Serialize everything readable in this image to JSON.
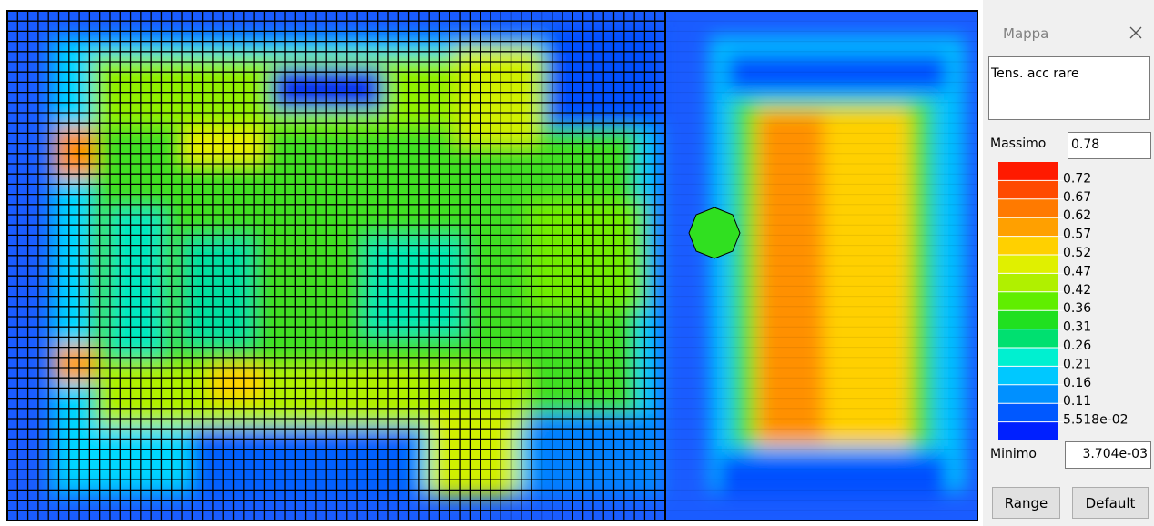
{
  "panel": {
    "title": "Mappa",
    "description": "Tens. acc rare",
    "max_label": "Massimo",
    "max_value": "0.78",
    "legend_labels": [
      "0.72",
      "0.67",
      "0.62",
      "0.57",
      "0.52",
      "0.47",
      "0.42",
      "0.36",
      "0.31",
      "0.26",
      "0.21",
      "0.16",
      "0.11",
      "5.518e-02"
    ],
    "legend_colors": [
      "#ff1a00",
      "#ff4a00",
      "#ff7a00",
      "#ffa000",
      "#ffd000",
      "#e0f000",
      "#b0f000",
      "#60ee00",
      "#20e020",
      "#00e070",
      "#00f0d0",
      "#00c8ff",
      "#0090ff",
      "#0058ff",
      "#0020ff"
    ],
    "min_label": "Minimo",
    "min_value": "3.704e-03",
    "buttons": [
      "Range",
      "Default"
    ]
  }
}
